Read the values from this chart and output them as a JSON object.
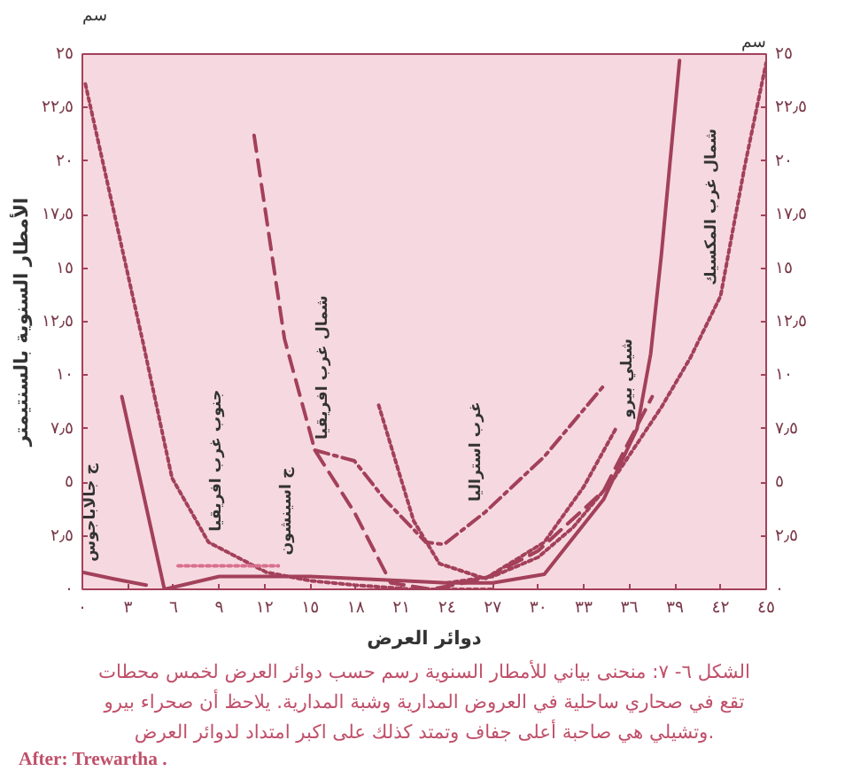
{
  "chart_data": {
    "type": "line",
    "title": "الشكل ٦- ٧: منحنى بياني للأمطار السنوية رسم حسب دوائر العرض لخمس محطات",
    "subtitle": "تقع في صحاري ساحلية في العروض المدارية وشبة المدارية. يلاحظ أن صحراء بيرو\nوتشيلي هي صاحبة أعلى جفاف وتمتد كذلك على اكبر امتداد لدوائر العرض.",
    "xlabel": "دوائر العرض",
    "ylabel": "الأمطار السنوية بالسنتيمتر",
    "y2label": "سم",
    "xlim": [
      0,
      45
    ],
    "ylim": [
      0,
      25
    ],
    "y2lim": [
      0,
      25
    ],
    "xticks": [
      {
        "value": 0,
        "label": "٠"
      },
      {
        "value": 3,
        "label": "٣"
      },
      {
        "value": 6,
        "label": "٦"
      },
      {
        "value": 9,
        "label": "٩"
      },
      {
        "value": 12,
        "label": "١٢"
      },
      {
        "value": 15,
        "label": "١٥"
      },
      {
        "value": 18,
        "label": "١٨"
      },
      {
        "value": 21,
        "label": "٢١"
      },
      {
        "value": 24,
        "label": "٢٤"
      },
      {
        "value": 27,
        "label": "٢٧"
      },
      {
        "value": 30,
        "label": "٣٠"
      },
      {
        "value": 33,
        "label": "٣٣"
      },
      {
        "value": 36,
        "label": "٣٦"
      },
      {
        "value": 39,
        "label": "٣٩"
      },
      {
        "value": 42,
        "label": "٤٢"
      },
      {
        "value": 45,
        "label": "٤٥"
      }
    ],
    "yticks": [
      {
        "value": 0,
        "label": "٠"
      },
      {
        "value": 2.5,
        "label": "٢٫٥"
      },
      {
        "value": 5,
        "label": "٥"
      },
      {
        "value": 7.5,
        "label": "٧٫٥"
      },
      {
        "value": 10,
        "label": "١٠"
      },
      {
        "value": 12.5,
        "label": "١٢٫٥"
      },
      {
        "value": 15,
        "label": "١٥"
      },
      {
        "value": 17.5,
        "label": "١٧٫٥"
      },
      {
        "value": 20,
        "label": "٢٠"
      },
      {
        "value": 22.5,
        "label": "٢٢٫٥"
      },
      {
        "value": 25,
        "label": "٢٥"
      }
    ],
    "y2ticks": [
      {
        "value": 0,
        "label": "٠"
      },
      {
        "value": 2.5,
        "label": "٢٫٥"
      },
      {
        "value": 5,
        "label": "٥"
      },
      {
        "value": 7.5,
        "label": "٧٫٥"
      },
      {
        "value": 10,
        "label": "١٠"
      },
      {
        "value": 12.5,
        "label": "١٢٫٥"
      },
      {
        "value": 15,
        "label": "١٥"
      },
      {
        "value": 17.5,
        "label": "١٧٫٥"
      },
      {
        "value": 20,
        "label": "٢٠"
      },
      {
        "value": 22.5,
        "label": "٢٢٫٥"
      },
      {
        "value": 25,
        "label": "٢٥"
      }
    ],
    "grid": false,
    "marker": "none",
    "series": [
      {
        "color": "#a3405a",
        "line_style": "dotted",
        "x": [
          0.2,
          2.4,
          4,
          5.9,
          8.3,
          12.1,
          15,
          17.9,
          21.8,
          27
        ],
        "values": [
          23.6,
          16.6,
          11.5,
          5.2,
          2.2,
          0.8,
          0.4,
          0.2,
          0,
          0
        ]
      },
      {
        "color": "#a3405a",
        "line_style": "dashed",
        "x": [
          11.3,
          13.3,
          15.3,
          17.9,
          20.3,
          23,
          26.5,
          30,
          34.3,
          37.5
        ],
        "values": [
          21.2,
          11.7,
          6.5,
          3.6,
          0.3,
          0,
          0.5,
          1.8,
          4.6,
          9.0
        ]
      },
      {
        "color": "#a3405a",
        "line_style": "dashdot",
        "x": [
          15.3,
          17.9,
          19.9,
          22.6,
          23.8,
          26.5,
          30.4,
          34.3
        ],
        "values": [
          6.5,
          6.0,
          4.2,
          2.2,
          2.1,
          3.6,
          6.2,
          9.5
        ]
      },
      {
        "color": "#a3405a",
        "line_style": "dotted",
        "x": [
          19.5,
          21.8,
          23.5,
          26.5,
          30.4,
          33,
          35.1
        ],
        "values": [
          8.6,
          3.2,
          1.2,
          0.5,
          2.2,
          4.8,
          7.5
        ]
      },
      {
        "color": "#a3405a",
        "line_style": "dotted",
        "x": [
          24,
          27,
          30,
          32.3,
          35,
          38.1,
          40,
          42,
          43.6,
          45
        ],
        "values": [
          0.3,
          0.6,
          1.5,
          2.9,
          5.2,
          8.5,
          10.8,
          13.7,
          19.8,
          24.6
        ]
      },
      {
        "color": "#a3405a",
        "line_style": "solid",
        "x": [
          2.6,
          5.4,
          9,
          15,
          21,
          24,
          27,
          30.4,
          34.3,
          36.5,
          37.4,
          38.1,
          39.3
        ],
        "values": [
          9.0,
          0,
          0.6,
          0.6,
          0.4,
          0.3,
          0.3,
          0.7,
          4.2,
          7.5,
          11,
          15.6,
          24.7
        ]
      },
      {
        "color": "#a3405a",
        "line_style": "solid",
        "x": [
          0,
          2,
          4.2
        ],
        "values": [
          0.8,
          0.5,
          0.2
        ]
      },
      {
        "color": "#d9708e",
        "line_style": "dotted",
        "x": [
          6.3,
          9,
          12.9
        ],
        "values": [
          1.1,
          1.1,
          1.1
        ]
      }
    ],
    "annotations": [
      {
        "text": "جنوب غرب افريقيا",
        "x": 8.3,
        "y": 2.2
      },
      {
        "text": "شمال غرب افريقيا",
        "x": 15.3,
        "y": 6.5
      },
      {
        "text": "غرب استراليا",
        "x": 26.5,
        "y": 3.6
      },
      {
        "text": "شيلي بيرو",
        "x": 36.5,
        "y": 7.5
      },
      {
        "text": "شمال غرب المكسيك",
        "x": 42,
        "y": 13.7
      },
      {
        "text": "ج جالاباجوس",
        "x": 0,
        "y": 0.8
      },
      {
        "text": "ج اسينشون",
        "x": 12.9,
        "y": 1.1
      },
      "After: Trewartha ."
    ]
  }
}
